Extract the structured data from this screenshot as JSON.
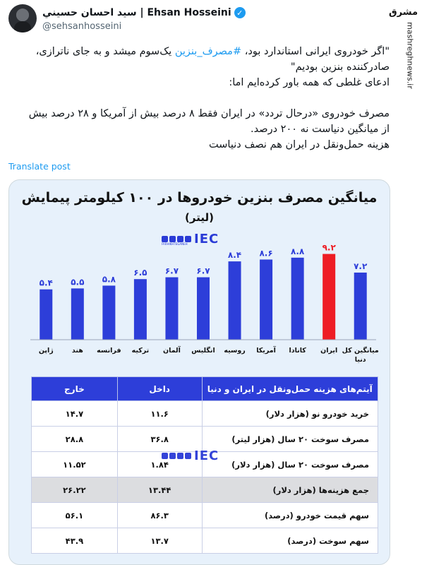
{
  "post": {
    "display_name": "سيد احسان حسيني | Ehsan Hosseini",
    "handle": "@sehsanhosseini",
    "text_lines": [
      "\"اگر خودروی ایرانی استاندارد بود، ",
      "مصرف_بنزین",
      " یک‌سوم میشد و به جای ناترازی،",
      "صادرکننده بنزین بودیم\"",
      "ادعای غلطی که همه باور کرده‌ایم اما:",
      "مصرف خودروی «درحال تردد» در ایران فقط ۸ درصد بیش از آمریکا و ۲۸ درصد بیش",
      "از میانگین دنیاست نه ۲۰۰ درصد.",
      "هزینه حمل‌ونقل در ایران هم نصف دنیاست"
    ],
    "translate_label": "Translate post"
  },
  "watermark": {
    "logo": "مشرق",
    "text": "mashreghnews.ir"
  },
  "infographic": {
    "title": "میانگین مصرف بنزین خودروها در ۱۰۰ کیلومتر پیمایش",
    "subtitle": "(لیتر)",
    "logo_word": "IEC",
    "logo_sub": "FARHIKHTEGANEH",
    "table": {
      "headers": [
        "آیتم‌های هزینه حمل‌ونقل در ایران و دنیا",
        "داخل",
        "خارج"
      ],
      "rows": [
        [
          "خرید خودرو نو (هزار دلار)",
          "۱۱.۶",
          "۱۴.۷"
        ],
        [
          "مصرف سوخت ۲۰ سال (هزار لیتر)",
          "۳۶.۸",
          "۲۸.۸"
        ],
        [
          "مصرف سوخت ۲۰ سال (هزار دلار)",
          "۱.۸۴",
          "۱۱.۵۲"
        ],
        [
          "جمع هزینه‌ها (هزار دلار)",
          "۱۳.۴۴",
          "۲۶.۲۲"
        ],
        [
          "سهم قیمت خودرو (درصد)",
          "۸۶.۳",
          "۵۶.۱"
        ],
        [
          "سهم سوخت (درصد)",
          "۱۳.۷",
          "۴۳.۹"
        ]
      ]
    }
  },
  "chart_data": {
    "type": "bar",
    "title": "میانگین مصرف بنزین خودروها در ۱۰۰ کیلومتر پیمایش",
    "ylabel": "(لیتر)",
    "categories": [
      "ژاپن",
      "هند",
      "فرانسه",
      "ترکیه",
      "آلمان",
      "انگلیس",
      "روسیه",
      "آمریکا",
      "کانادا",
      "ایران",
      "میانگین کل دنیا"
    ],
    "values": [
      5.4,
      5.5,
      5.8,
      6.5,
      6.7,
      6.7,
      8.4,
      8.6,
      8.8,
      9.2,
      7.2
    ],
    "value_labels": [
      "۵.۴",
      "۵.۵",
      "۵.۸",
      "۶.۵",
      "۶.۷",
      "۶.۷",
      "۸.۴",
      "۸.۶",
      "۸.۸",
      "۹.۲",
      "۷.۲"
    ],
    "category_lines": [
      [
        "ژاپن"
      ],
      [
        "هند"
      ],
      [
        "فرانسه"
      ],
      [
        "ترکیه"
      ],
      [
        "آلمان"
      ],
      [
        "انگلیس"
      ],
      [
        "روسیه"
      ],
      [
        "آمریکا"
      ],
      [
        "کانادا"
      ],
      [
        "ایران"
      ],
      [
        "میانگین کل",
        "دنیا"
      ]
    ],
    "colors": {
      "default": "#2d3ed9",
      "highlight": "#ee1d24"
    },
    "highlight_index": 9,
    "ylim": [
      0,
      10
    ],
    "grid": false
  }
}
